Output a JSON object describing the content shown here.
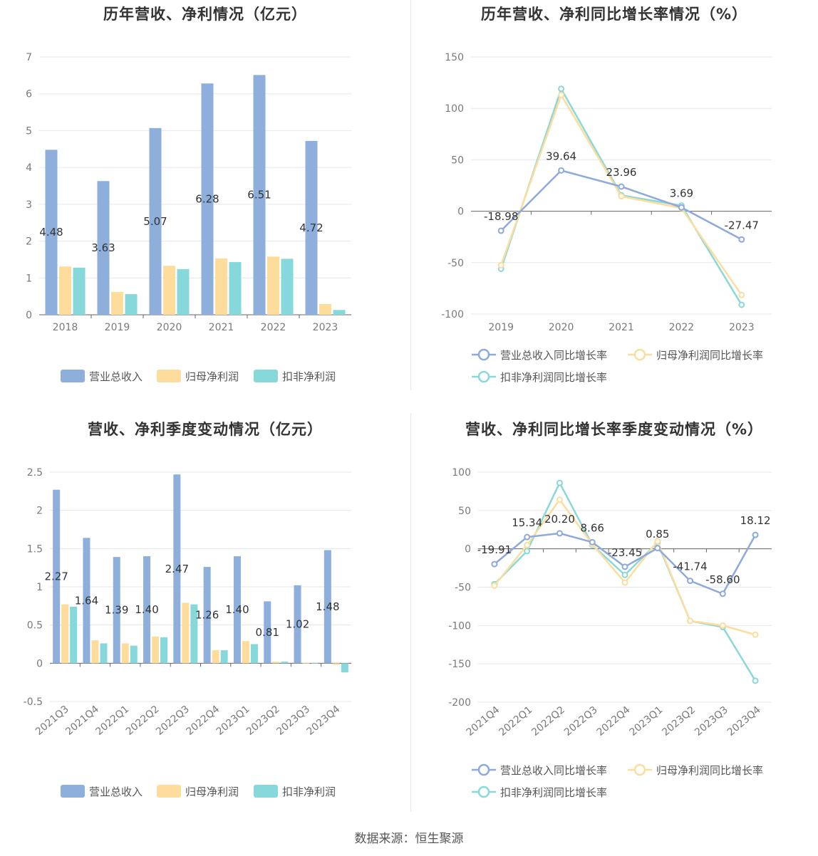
{
  "colors": {
    "revenue": "#8eaedb",
    "net_profit": "#fddc9c",
    "deducted_profit": "#86d8db",
    "revenue_line": "#8ea9db",
    "net_line": "#fcdd9e",
    "deducted_line": "#8ad8d8",
    "grid": "#e4e7ef",
    "axis": "#666666"
  },
  "source_text": "数据来源：恒生聚源",
  "chart_data": [
    {
      "type": "bar",
      "title": "历年营收、净利情况（亿元）",
      "categories": [
        "2018",
        "2019",
        "2020",
        "2021",
        "2022",
        "2023"
      ],
      "ylim": [
        0,
        7
      ],
      "yticks": [
        "0",
        "1",
        "2",
        "3",
        "4",
        "5",
        "6",
        "7"
      ],
      "series": [
        {
          "name": "营业总收入",
          "values": [
            4.48,
            3.63,
            5.07,
            6.28,
            6.51,
            4.72
          ],
          "labels": [
            "4.48",
            "3.63",
            "5.07",
            "6.28",
            "6.51",
            "4.72"
          ]
        },
        {
          "name": "归母净利润",
          "values": [
            1.31,
            0.62,
            1.33,
            1.53,
            1.58,
            0.29
          ]
        },
        {
          "name": "扣非净利润",
          "values": [
            1.28,
            0.56,
            1.24,
            1.43,
            1.52,
            0.13
          ]
        }
      ],
      "legend": "bottom",
      "grid": true
    },
    {
      "type": "line",
      "title": "历年营收、净利同比增长率情况（%）",
      "categories": [
        "2019",
        "2020",
        "2021",
        "2022",
        "2023"
      ],
      "ylim": [
        -100,
        150
      ],
      "yticks": [
        "-100",
        "-50",
        "0",
        "50",
        "100",
        "150"
      ],
      "series": [
        {
          "name": "营业总收入同比增长率",
          "values": [
            -18.98,
            39.64,
            23.96,
            3.69,
            -27.47
          ],
          "labels": [
            "-18.98",
            "39.64",
            "23.96",
            "3.69",
            "-27.47"
          ]
        },
        {
          "name": "归母净利润同比增长率",
          "values": [
            -52.5,
            113.0,
            14.5,
            3.0,
            -81.5
          ]
        },
        {
          "name": "扣非净利润同比增长率",
          "values": [
            -56.0,
            119.0,
            15.5,
            5.5,
            -91.0
          ]
        }
      ],
      "legend": "bottom",
      "grid": true
    },
    {
      "type": "bar",
      "title": "营收、净利季度变动情况（亿元）",
      "categories": [
        "2021Q3",
        "2021Q4",
        "2022Q1",
        "2022Q2",
        "2022Q3",
        "2022Q4",
        "2023Q1",
        "2023Q2",
        "2023Q3",
        "2023Q4"
      ],
      "ylim": [
        -0.5,
        2.5
      ],
      "yticks": [
        "-0.5",
        "0",
        "0.5",
        "1",
        "1.5",
        "2",
        "2.5"
      ],
      "series": [
        {
          "name": "营业总收入",
          "values": [
            2.27,
            1.64,
            1.39,
            1.4,
            2.47,
            1.26,
            1.4,
            0.81,
            1.02,
            1.48
          ],
          "labels": [
            "2.27",
            "1.64",
            "1.39",
            "1.40",
            "2.47",
            "1.26",
            "1.40",
            "0.81",
            "1.02",
            "1.48"
          ]
        },
        {
          "name": "归母净利润",
          "values": [
            0.77,
            0.3,
            0.26,
            0.35,
            0.79,
            0.17,
            0.29,
            0.02,
            0.005,
            -0.02
          ]
        },
        {
          "name": "扣非净利润",
          "values": [
            0.74,
            0.26,
            0.23,
            0.34,
            0.77,
            0.17,
            0.25,
            0.02,
            0.005,
            -0.12
          ]
        }
      ],
      "legend": "bottom",
      "grid": true
    },
    {
      "type": "line",
      "title": "营收、净利同比增长率季度变动情况（%）",
      "categories": [
        "2021Q4",
        "2022Q1",
        "2022Q2",
        "2022Q3",
        "2022Q4",
        "2023Q1",
        "2023Q2",
        "2023Q3",
        "2023Q4"
      ],
      "ylim": [
        -200,
        100
      ],
      "yticks": [
        "-200",
        "-150",
        "-100",
        "-50",
        "0",
        "50",
        "100"
      ],
      "series": [
        {
          "name": "营业总收入同比增长率",
          "values": [
            -19.91,
            15.34,
            20.2,
            8.66,
            -23.45,
            0.85,
            -41.74,
            -58.6,
            18.12
          ],
          "labels": [
            "-19.91",
            "15.34",
            "20.20",
            "8.66",
            "-23.45",
            "0.85",
            "-41.74",
            "-58.60",
            "18.12"
          ]
        },
        {
          "name": "归母净利润同比增长率",
          "values": [
            -48,
            5,
            64,
            6,
            -44,
            10,
            -94,
            -100,
            -112
          ]
        },
        {
          "name": "扣非净利润同比增长率",
          "values": [
            -46,
            -3,
            86,
            5,
            -34,
            8,
            -94,
            -102,
            -172
          ]
        }
      ],
      "legend": "bottom",
      "grid": true
    }
  ]
}
